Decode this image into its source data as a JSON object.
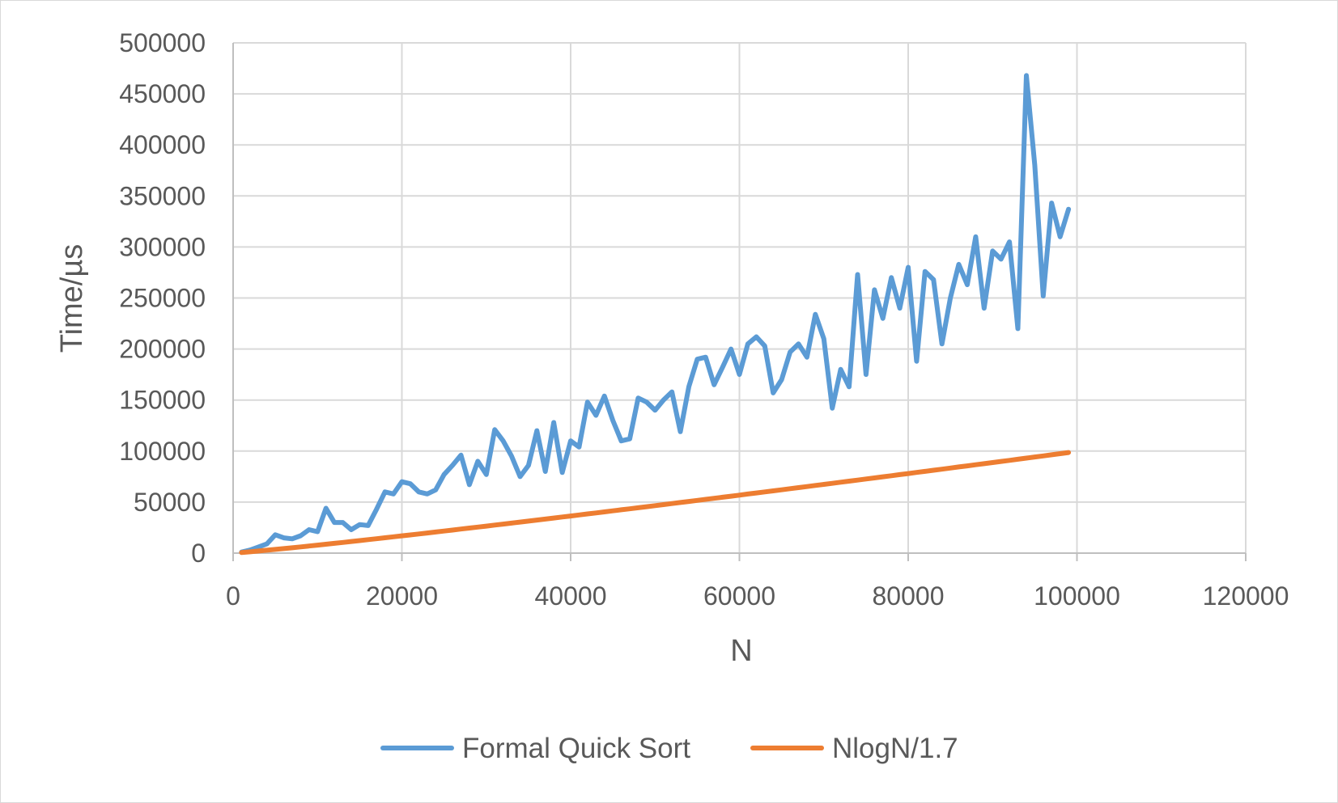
{
  "chart_data": {
    "type": "line",
    "title": "",
    "xlabel": "N",
    "ylabel": "Time/µs",
    "xlim": [
      0,
      120000
    ],
    "ylim": [
      0,
      500000
    ],
    "x_ticks": [
      "0",
      "20000",
      "40000",
      "60000",
      "80000",
      "100000",
      "120000"
    ],
    "y_ticks": [
      "0",
      "50000",
      "100000",
      "150000",
      "200000",
      "250000",
      "300000",
      "350000",
      "400000",
      "450000",
      "500000"
    ],
    "grid": true,
    "legend_position": "bottom",
    "x": [
      1000,
      2000,
      3000,
      4000,
      5000,
      6000,
      7000,
      8000,
      9000,
      10000,
      11000,
      12000,
      13000,
      14000,
      15000,
      16000,
      17000,
      18000,
      19000,
      20000,
      21000,
      22000,
      23000,
      24000,
      25000,
      26000,
      27000,
      28000,
      29000,
      30000,
      31000,
      32000,
      33000,
      34000,
      35000,
      36000,
      37000,
      38000,
      39000,
      40000,
      41000,
      42000,
      43000,
      44000,
      45000,
      46000,
      47000,
      48000,
      49000,
      50000,
      51000,
      52000,
      53000,
      54000,
      55000,
      56000,
      57000,
      58000,
      59000,
      60000,
      61000,
      62000,
      63000,
      64000,
      65000,
      66000,
      67000,
      68000,
      69000,
      70000,
      71000,
      72000,
      73000,
      74000,
      75000,
      76000,
      77000,
      78000,
      79000,
      80000,
      81000,
      82000,
      83000,
      84000,
      85000,
      86000,
      87000,
      88000,
      89000,
      90000,
      91000,
      92000,
      93000,
      94000,
      95000,
      96000,
      97000,
      98000,
      99000
    ],
    "series": [
      {
        "name": "Formal Quick Sort",
        "color": "#5b9bd5",
        "values": [
          1000,
          3000,
          6000,
          9000,
          18000,
          15000,
          14000,
          17000,
          23000,
          21000,
          44000,
          30000,
          30000,
          23000,
          28000,
          27000,
          43000,
          60000,
          58000,
          70000,
          68000,
          60000,
          58000,
          62000,
          77000,
          86000,
          96000,
          67000,
          90000,
          77000,
          121000,
          110000,
          95000,
          75000,
          86000,
          120000,
          80000,
          128000,
          79000,
          110000,
          104000,
          148000,
          135000,
          154000,
          130000,
          110000,
          112000,
          152000,
          148000,
          140000,
          150000,
          158000,
          119000,
          163000,
          190000,
          192000,
          165000,
          182000,
          200000,
          175000,
          205000,
          212000,
          203000,
          157000,
          170000,
          197000,
          205000,
          192000,
          234000,
          210000,
          142000,
          180000,
          163000,
          273000,
          175000,
          258000,
          230000,
          270000,
          240000,
          280000,
          188000,
          276000,
          268000,
          205000,
          250000,
          283000,
          263000,
          310000,
          240000,
          296000,
          288000,
          305000,
          220000,
          468000,
          380000,
          252000,
          343000,
          310000,
          337000
        ]
      },
      {
        "name": "NlogN/1.7",
        "color": "#ed7d31",
        "values": [
          586,
          1290,
          2033,
          2816,
          3610,
          4426,
          5261,
          6108,
          6967,
          7836,
          8714,
          9599,
          10492,
          11393,
          12300,
          13213,
          14131,
          15056,
          15985,
          16920,
          17859,
          18802,
          19750,
          20702,
          21657,
          22617,
          23580,
          24547,
          25517,
          26491,
          27467,
          28447,
          29429,
          30415,
          31403,
          32393,
          33387,
          34383,
          35382,
          36383,
          37386,
          38392,
          39400,
          40410,
          41423,
          42437,
          43454,
          44472,
          45493,
          46516,
          47540,
          48567,
          49596,
          50626,
          51658,
          52692,
          53728,
          54766,
          55805,
          56846,
          57889,
          58933,
          59979,
          61027,
          62076,
          63127,
          64179,
          65233,
          66288,
          67345,
          68403,
          69462,
          70523,
          71586,
          72649,
          73715,
          74781,
          75849,
          76918,
          77988,
          79060,
          80133,
          81207,
          82282,
          83358,
          84436,
          85515,
          86594,
          87675,
          88757,
          89841,
          90925,
          92010,
          93097,
          94184,
          95273,
          96362,
          97453,
          98545
        ]
      }
    ]
  }
}
